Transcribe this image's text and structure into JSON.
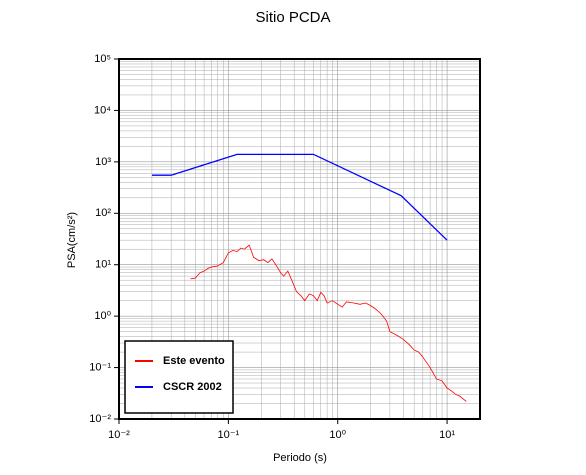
{
  "chart_data": {
    "type": "line",
    "title": "Sitio PCDA",
    "xlabel": "Periodo (s)",
    "ylabel": "PSA(cm/s²)",
    "xscale": "log",
    "yscale": "log",
    "grid": true,
    "minor_grid": true,
    "legend": "lower left",
    "xlim": [
      0.01,
      20
    ],
    "ylim": [
      0.01,
      100000
    ],
    "xticks": [
      {
        "value": 0.01,
        "label": "10⁻²"
      },
      {
        "value": 0.1,
        "label": "10⁻¹"
      },
      {
        "value": 1,
        "label": "10⁰"
      },
      {
        "value": 10,
        "label": "10¹"
      }
    ],
    "yticks": [
      {
        "value": 0.01,
        "label": "10⁻²"
      },
      {
        "value": 0.1,
        "label": "10⁻¹"
      },
      {
        "value": 1,
        "label": "10⁰"
      },
      {
        "value": 10,
        "label": "10¹"
      },
      {
        "value": 100,
        "label": "10²"
      },
      {
        "value": 1000,
        "label": "10³"
      },
      {
        "value": 10000,
        "label": "10⁴"
      },
      {
        "value": 100000,
        "label": "10⁵"
      }
    ],
    "series": [
      {
        "name": "Este evento",
        "color": "#ff0000",
        "x": [
          0.045,
          0.05,
          0.055,
          0.06,
          0.065,
          0.07,
          0.08,
          0.09,
          0.1,
          0.11,
          0.12,
          0.13,
          0.14,
          0.155,
          0.17,
          0.19,
          0.21,
          0.23,
          0.25,
          0.28,
          0.3,
          0.32,
          0.35,
          0.38,
          0.42,
          0.46,
          0.5,
          0.55,
          0.6,
          0.65,
          0.7,
          0.75,
          0.8,
          0.85,
          0.9,
          1.0,
          1.1,
          1.2,
          1.4,
          1.6,
          1.8,
          2.0,
          2.2,
          2.5,
          2.8,
          3.0,
          3.5,
          4,
          4.5,
          5,
          5.5,
          6,
          7,
          8,
          9,
          10,
          11,
          12,
          13,
          15
        ],
        "values": [
          5.3,
          5.5,
          7,
          7.5,
          8.5,
          9,
          9.5,
          11,
          17,
          19,
          18,
          21,
          20,
          24,
          14,
          12,
          12.5,
          11,
          13,
          9,
          7,
          6,
          7.5,
          5,
          3,
          2.5,
          2,
          2.7,
          2.5,
          2,
          2.9,
          2.5,
          1.8,
          1.9,
          2,
          1.7,
          1.5,
          1.9,
          1.8,
          1.7,
          1.8,
          1.6,
          1.4,
          1.1,
          0.8,
          0.5,
          0.42,
          0.35,
          0.28,
          0.22,
          0.2,
          0.16,
          0.1,
          0.06,
          0.055,
          0.04,
          0.035,
          0.03,
          0.028,
          0.022
        ]
      },
      {
        "name": "CSCR 2002",
        "color": "#0000ff",
        "x": [
          0.02,
          0.03,
          0.12,
          0.6,
          3.8,
          10
        ],
        "values": [
          550,
          550,
          1400,
          1400,
          220,
          30
        ]
      }
    ]
  }
}
